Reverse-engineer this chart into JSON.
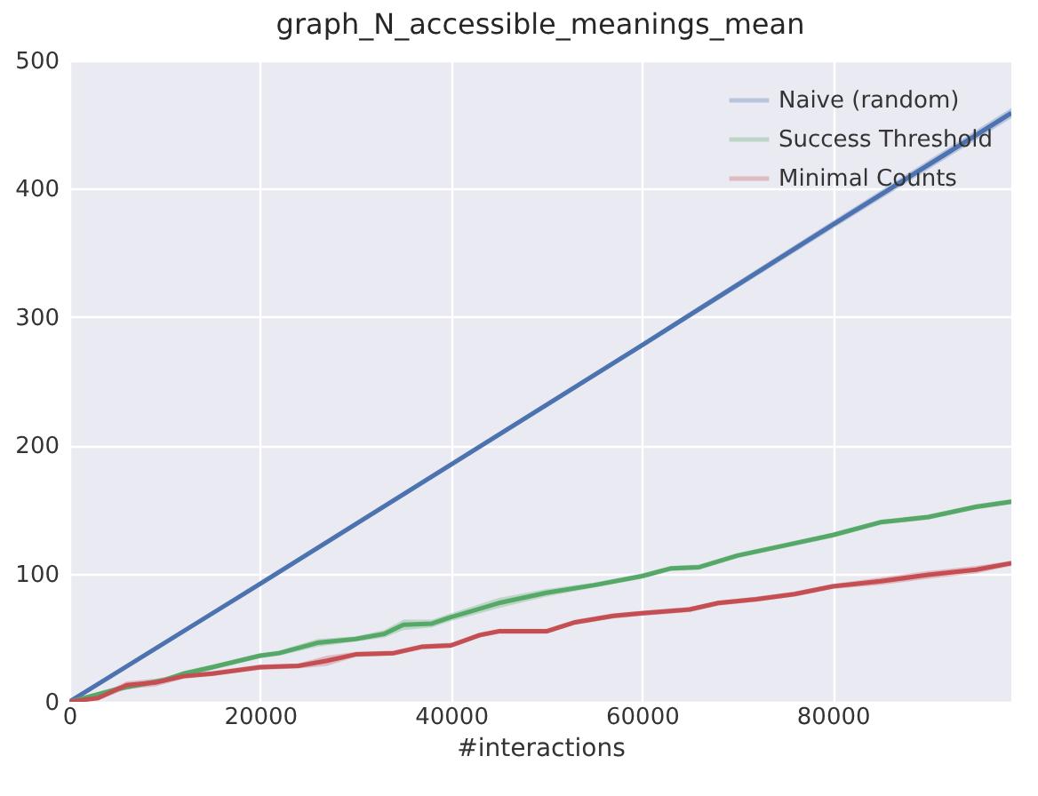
{
  "chart_data": {
    "type": "line",
    "title": "graph_N_accessible_meanings_mean",
    "xlabel": "#interactions",
    "xlim": [
      0,
      98700
    ],
    "ylim": [
      0,
      500
    ],
    "xticks": [
      0,
      20000,
      40000,
      60000,
      80000
    ],
    "yticks": [
      0,
      100,
      200,
      300,
      400,
      500
    ],
    "grid": true,
    "legend": "top right",
    "series": [
      {
        "name": "Naive (random)",
        "color": "#4c72b0",
        "x": [
          0,
          20000,
          40000,
          60000,
          80000,
          98700
        ],
        "values": [
          0,
          92,
          185,
          278,
          372,
          459
        ],
        "lower": [
          0,
          90,
          183,
          276,
          369,
          455
        ],
        "upper": [
          0,
          94,
          187,
          280,
          375,
          463
        ]
      },
      {
        "name": "Success Threshold",
        "color": "#55a868",
        "x": [
          0,
          5000,
          10000,
          12000,
          15000,
          20000,
          22000,
          26000,
          30000,
          33000,
          35000,
          38000,
          40000,
          45000,
          50000,
          55000,
          60000,
          63000,
          66000,
          70000,
          75000,
          80000,
          85000,
          90000,
          95000,
          98700
        ],
        "values": [
          0,
          10,
          17,
          22,
          27,
          36,
          38,
          46,
          49,
          53,
          60,
          61,
          66,
          77,
          85,
          91,
          98,
          104,
          105,
          114,
          122,
          130,
          140,
          144,
          152,
          156
        ],
        "lower": [
          0,
          8,
          15,
          20,
          25,
          34,
          36,
          43,
          47,
          50,
          56,
          58,
          63,
          73,
          82,
          89,
          96,
          102,
          103,
          112,
          120,
          128,
          138,
          142,
          150,
          154
        ],
        "upper": [
          0,
          12,
          19,
          24,
          29,
          38,
          40,
          49,
          51,
          56,
          64,
          64,
          69,
          81,
          88,
          93,
          100,
          106,
          107,
          116,
          124,
          132,
          142,
          146,
          154,
          158
        ]
      },
      {
        "name": "Minimal Counts",
        "color": "#c44e52",
        "x": [
          0,
          3000,
          6000,
          9000,
          12000,
          15000,
          20000,
          24000,
          27000,
          30000,
          34000,
          37000,
          40000,
          43000,
          45000,
          50000,
          53000,
          57000,
          60000,
          65000,
          68000,
          72000,
          76000,
          80000,
          85000,
          90000,
          95000,
          98700
        ],
        "values": [
          0,
          3,
          13,
          15,
          20,
          22,
          27,
          28,
          32,
          37,
          38,
          43,
          44,
          52,
          55,
          55,
          62,
          67,
          69,
          72,
          77,
          80,
          84,
          90,
          94,
          99,
          103,
          108
        ],
        "lower": [
          0,
          1,
          10,
          12,
          18,
          20,
          25,
          26,
          28,
          35,
          36,
          41,
          42,
          50,
          53,
          53,
          60,
          65,
          67,
          70,
          75,
          78,
          82,
          88,
          91,
          96,
          100,
          106
        ],
        "upper": [
          0,
          5,
          16,
          18,
          22,
          24,
          29,
          30,
          36,
          39,
          40,
          45,
          46,
          54,
          57,
          57,
          64,
          69,
          71,
          74,
          79,
          82,
          86,
          92,
          97,
          102,
          106,
          110
        ]
      }
    ]
  }
}
